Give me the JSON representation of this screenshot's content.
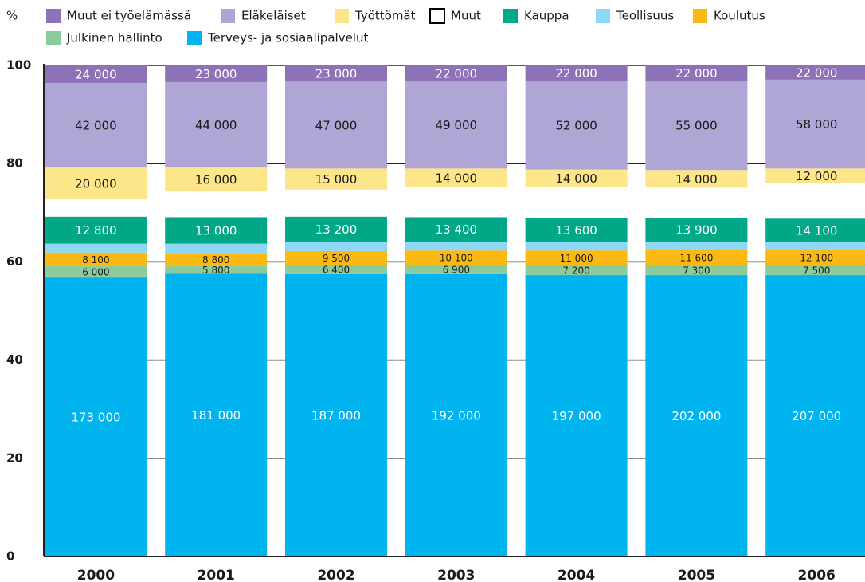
{
  "chart_data": {
    "type": "stacked_bar",
    "ylabel": "%",
    "categories": [
      "2000",
      "2001",
      "2002",
      "2003",
      "2004",
      "2005",
      "2006"
    ],
    "ylim": [
      0,
      100
    ],
    "yticks": [
      0,
      20,
      40,
      60,
      80,
      100
    ],
    "grid": true,
    "series": [
      {
        "name": "Muut ei työelämässä",
        "color": "#8e72b8",
        "label_color": "#ffffff",
        "values": [
          3.6,
          3.4,
          3.3,
          3.2,
          3.1,
          3.1,
          2.9
        ],
        "data_labels": [
          "24 000",
          "23 000",
          "23 000",
          "22 000",
          "22 000",
          "22 000",
          "22 000"
        ]
      },
      {
        "name": "Eläkeläiset",
        "color": "#b0a6d6",
        "label_color": "#1a1a1a",
        "values": [
          17.2,
          17.4,
          17.7,
          17.8,
          18.1,
          18.2,
          18.1
        ],
        "data_labels": [
          "42 000",
          "44 000",
          "47 000",
          "49 000",
          "52 000",
          "55 000",
          "58 000"
        ]
      },
      {
        "name": "Työttömät",
        "color": "#fde68a",
        "label_color": "#1a1a1a",
        "values": [
          6.5,
          4.9,
          4.3,
          3.8,
          3.6,
          3.6,
          3.0
        ],
        "data_labels": [
          "20 000",
          "16 000",
          "15 000",
          "14 000",
          "14 000",
          "14 000",
          "12 000"
        ]
      },
      {
        "name": "Muut",
        "color": "#ffffff",
        "label_color": "#1a1a1a",
        "values": [
          3.5,
          5.2,
          5.5,
          6.1,
          6.3,
          6.1,
          7.2
        ]
      },
      {
        "name": "Kauppa",
        "color": "#00a887",
        "label_color": "#ffffff",
        "values": [
          5.5,
          5.4,
          5.2,
          5.0,
          4.9,
          4.9,
          4.8
        ],
        "data_labels": [
          "12 800",
          "13 000",
          "13 200",
          "13 400",
          "13 600",
          "13 900",
          "14 100"
        ]
      },
      {
        "name": "Teollisuus",
        "color": "#8ed8f5",
        "label_color": "#1a1a1a",
        "values": [
          1.8,
          1.9,
          1.8,
          1.8,
          1.7,
          1.7,
          1.6
        ]
      },
      {
        "name": "Koulutus",
        "color": "#fdb913",
        "label_color": "#1a1a1a",
        "label_size": "small",
        "values": [
          2.8,
          2.6,
          2.8,
          2.9,
          3.0,
          3.1,
          3.1
        ],
        "data_labels": [
          "8 100",
          "8 800",
          "9 500",
          "10 100",
          "11 000",
          "11 600",
          "12 100"
        ]
      },
      {
        "name": "Julkinen hallinto",
        "color": "#8ccb9b",
        "label_color": "#1a1a1a",
        "label_size": "small",
        "values": [
          2.3,
          1.6,
          1.9,
          1.9,
          2.0,
          2.0,
          2.0
        ],
        "data_labels": [
          "6 000",
          "5 800",
          "6 400",
          "6 900",
          "7 200",
          "7 300",
          "7 500"
        ]
      },
      {
        "name": "Terveys- ja sosiaalipalvelut",
        "color": "#00b5ef",
        "label_color": "#ffffff",
        "values": [
          56.8,
          57.6,
          57.5,
          57.5,
          57.3,
          57.3,
          57.3
        ],
        "data_labels": [
          "173 000",
          "181 000",
          "187 000",
          "192 000",
          "197 000",
          "202 000",
          "207 000"
        ]
      }
    ]
  }
}
